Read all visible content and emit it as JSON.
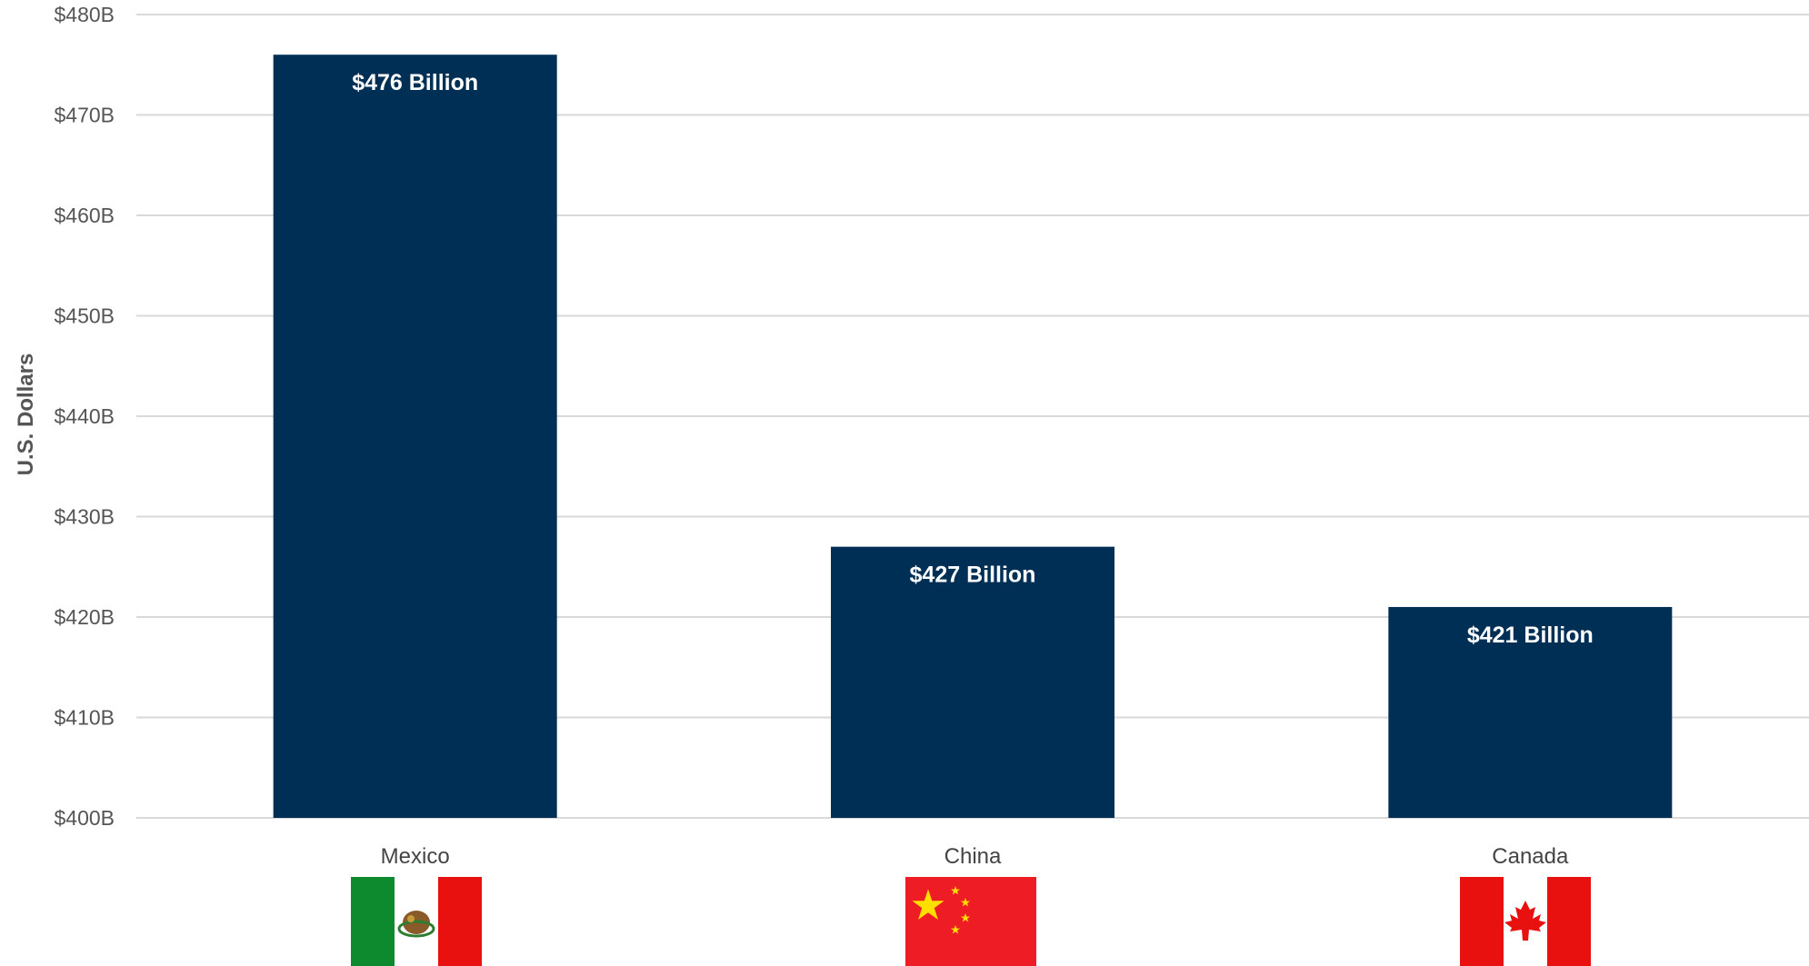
{
  "chart_data": {
    "type": "bar",
    "categories": [
      "Mexico",
      "China",
      "Canada"
    ],
    "values": [
      476,
      427,
      421
    ],
    "data_labels": [
      "$476  Billion",
      "$427 Billion",
      "$421 Billion"
    ],
    "title": "",
    "xlabel": "",
    "ylabel": "U.S. Dollars",
    "ylim": [
      400,
      480
    ],
    "yticks": [
      400,
      410,
      420,
      430,
      440,
      450,
      460,
      470,
      480
    ],
    "ytick_labels": [
      "$400B",
      "$410B",
      "$420B",
      "$430B",
      "$440B",
      "$450B",
      "$460B",
      "$470B",
      "$480B"
    ],
    "grid": true,
    "legend": "none",
    "colors": {
      "bar": "#002f56",
      "grid": "#d9d9d9",
      "axis_text": "#555555"
    },
    "category_icons": [
      "mexico-flag-icon",
      "china-flag-icon",
      "canada-flag-icon"
    ]
  }
}
